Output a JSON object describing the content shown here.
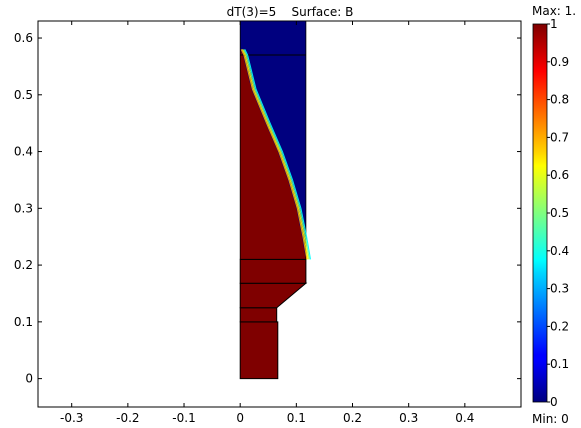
{
  "chart_data": {
    "type": "heatmap",
    "title": "dT(3)=5    Surface: B",
    "xlabel": "",
    "ylabel": "",
    "xlim": [
      -0.36,
      0.5
    ],
    "ylim": [
      -0.05,
      0.63
    ],
    "xticks": [
      -0.3,
      -0.2,
      -0.1,
      0,
      0.1,
      0.2,
      0.3,
      0.4
    ],
    "xtick_labels": [
      "-0.3",
      "-0.2",
      "-0.1",
      "0",
      "0.1",
      "0.2",
      "0.3",
      "0.4"
    ],
    "yticks": [
      0,
      0.1,
      0.2,
      0.3,
      0.4,
      0.5,
      0.6
    ],
    "ytick_labels": [
      "0",
      "0.1",
      "0.2",
      "0.3",
      "0.4",
      "0.5",
      "0.6"
    ],
    "regions": [
      {
        "name": "bottom-lower",
        "polygon": [
          [
            0,
            0
          ],
          [
            0.067,
            0
          ],
          [
            0.067,
            0.1
          ],
          [
            0,
            0.1
          ]
        ],
        "value": 1
      },
      {
        "name": "bottom-upper",
        "polygon": [
          [
            0,
            0.1
          ],
          [
            0.065,
            0.1
          ],
          [
            0.065,
            0.125
          ],
          [
            0,
            0.125
          ]
        ],
        "value": 1
      },
      {
        "name": "tapered",
        "polygon": [
          [
            0,
            0.125
          ],
          [
            0.065,
            0.125
          ],
          [
            0.117,
            0.168
          ],
          [
            0,
            0.168
          ]
        ],
        "value": 1
      },
      {
        "name": "middle",
        "polygon": [
          [
            0,
            0.168
          ],
          [
            0.117,
            0.168
          ],
          [
            0.117,
            0.21
          ],
          [
            0,
            0.21
          ]
        ],
        "value": 1
      },
      {
        "name": "upper-blue",
        "polygon": [
          [
            0,
            0.21
          ],
          [
            0.117,
            0.21
          ],
          [
            0.117,
            0.63
          ],
          [
            0,
            0.63
          ]
        ],
        "value": 0
      },
      {
        "name": "upper-red-wedge",
        "polygon": [
          [
            0,
            0.21
          ],
          [
            0.117,
            0.21
          ],
          [
            0.11,
            0.25
          ],
          [
            0.1,
            0.3
          ],
          [
            0.085,
            0.35
          ],
          [
            0.067,
            0.4
          ],
          [
            0.045,
            0.45
          ],
          [
            0.02,
            0.51
          ],
          [
            0.005,
            0.57
          ],
          [
            0,
            0.58
          ]
        ],
        "value": 1
      }
    ],
    "internal_boundaries_y": [
      0.21,
      0.57
    ],
    "colorbar": {
      "colormap": "jet",
      "min": 0,
      "max": 1,
      "ticks": [
        0,
        0.1,
        0.2,
        0.3,
        0.4,
        0.5,
        0.6,
        0.7,
        0.8,
        0.9,
        1
      ],
      "tick_labels": [
        "0",
        "0.1",
        "0.2",
        "0.3",
        "0.4",
        "0.5",
        "0.6",
        "0.7",
        "0.8",
        "0.9",
        "1"
      ],
      "max_label": "Max: 1.",
      "min_label": "Min: 0"
    }
  }
}
